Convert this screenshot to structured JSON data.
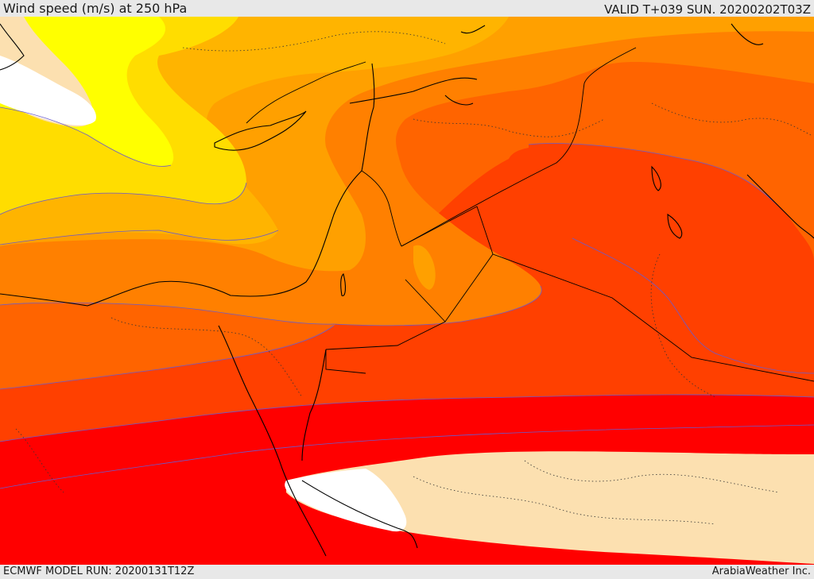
{
  "header": {
    "title": "Wind speed (m/s) at 250 hPa",
    "valid": "VALID T+039 SUN. 20200202T03Z"
  },
  "footer": {
    "model_run": "ECMWF MODEL RUN: 20200131T12Z",
    "credit": "ArabiaWeather Inc."
  },
  "map": {
    "field": "wind_speed_250hPa",
    "colors": {
      "band_lowest": "#fce0b0",
      "band_yellow": "#ffff00",
      "band_gold": "#ffdd00",
      "band_amber": "#ffb400",
      "band_orange": "#ffa000",
      "band_dark_orange": "#ff8000",
      "band_red_orange": "#ff6400",
      "band_orange_red": "#ff4000",
      "band_red": "#ff0000",
      "band_core": "#ffffff",
      "contour": "#6a5acd",
      "coastline": "#000000",
      "border": "#000000"
    }
  }
}
